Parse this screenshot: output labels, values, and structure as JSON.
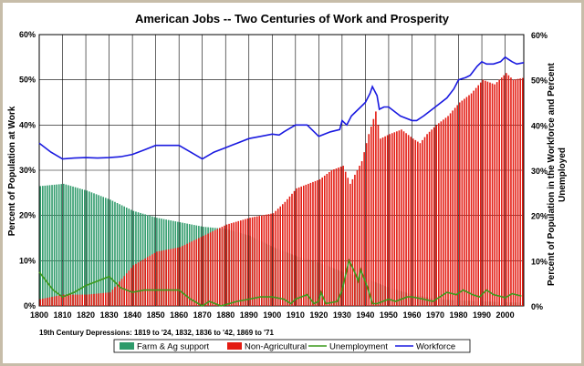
{
  "chart_data": {
    "type": "bar",
    "title": "American Jobs --  Two Centuries of  Work and Prosperity",
    "ylabel_left": "Percent of Population at Work",
    "ylabel_right": "Percent of Population in the Workforce and Percent Unemployed",
    "ylim": [
      0,
      60
    ],
    "xlim": [
      1800,
      2008
    ],
    "y_ticks": [
      "0%",
      "10%",
      "20%",
      "30%",
      "40%",
      "50%",
      "60%"
    ],
    "x_ticks": [
      "1800",
      "1810",
      "1820",
      "1830",
      "1840",
      "1850",
      "1860",
      "1870",
      "1880",
      "1890",
      "1900",
      "1910",
      "1920",
      "1930",
      "1940",
      "1950",
      "1960",
      "1970",
      "1980",
      "1990",
      "2000"
    ],
    "grid": true,
    "legend_position": "bottom",
    "note": "19th Century Depressions: 1819 to '24, 1832, 1836 to '42, 1869 to '71",
    "colors": {
      "farm": "#2e9a6a",
      "nonag": "#e31b12",
      "unemployment": "#3c9a1c",
      "workforce": "#1a1ae0",
      "frame": "#c7bda9"
    },
    "series": [
      {
        "name": "Farm & Ag support",
        "kind": "bar",
        "points": [
          [
            1800,
            26.5
          ],
          [
            1810,
            27
          ],
          [
            1820,
            25.5
          ],
          [
            1830,
            23.5
          ],
          [
            1840,
            21
          ],
          [
            1850,
            19.5
          ],
          [
            1860,
            18.5
          ],
          [
            1870,
            17.5
          ],
          [
            1880,
            17
          ],
          [
            1890,
            15.5
          ],
          [
            1900,
            13
          ],
          [
            1910,
            11
          ],
          [
            1920,
            9.5
          ],
          [
            1930,
            7.5
          ],
          [
            1940,
            6
          ],
          [
            1950,
            4
          ],
          [
            1960,
            2.5
          ],
          [
            1970,
            1.5
          ],
          [
            1980,
            1.2
          ],
          [
            1990,
            1
          ],
          [
            2000,
            0.8
          ],
          [
            2008,
            0.7
          ]
        ]
      },
      {
        "name": "Non-Agricultural",
        "kind": "bar",
        "points": [
          [
            1800,
            1.5
          ],
          [
            1810,
            2.5
          ],
          [
            1820,
            2.5
          ],
          [
            1830,
            3
          ],
          [
            1840,
            9
          ],
          [
            1850,
            12
          ],
          [
            1860,
            13
          ],
          [
            1870,
            15.5
          ],
          [
            1880,
            18
          ],
          [
            1890,
            19.5
          ],
          [
            1900,
            20.5
          ],
          [
            1905,
            23
          ],
          [
            1910,
            26
          ],
          [
            1920,
            28
          ],
          [
            1925,
            30
          ],
          [
            1930,
            31
          ],
          [
            1933,
            27
          ],
          [
            1938,
            32
          ],
          [
            1941,
            38
          ],
          [
            1944,
            43
          ],
          [
            1946,
            37
          ],
          [
            1950,
            38
          ],
          [
            1955,
            39
          ],
          [
            1960,
            37
          ],
          [
            1963,
            36
          ],
          [
            1966,
            38
          ],
          [
            1970,
            40
          ],
          [
            1975,
            42
          ],
          [
            1980,
            45
          ],
          [
            1985,
            47
          ],
          [
            1990,
            50
          ],
          [
            1995,
            49
          ],
          [
            2000,
            51.5
          ],
          [
            2003,
            50
          ],
          [
            2008,
            50.5
          ]
        ]
      },
      {
        "name": "Unemployment",
        "kind": "line",
        "points": [
          [
            1800,
            7.5
          ],
          [
            1803,
            5.5
          ],
          [
            1806,
            3.5
          ],
          [
            1810,
            2
          ],
          [
            1815,
            3
          ],
          [
            1820,
            4.5
          ],
          [
            1825,
            5.5
          ],
          [
            1830,
            6.5
          ],
          [
            1835,
            4
          ],
          [
            1840,
            3
          ],
          [
            1845,
            3.5
          ],
          [
            1850,
            3.5
          ],
          [
            1855,
            3.5
          ],
          [
            1860,
            3.5
          ],
          [
            1865,
            1.5
          ],
          [
            1870,
            0
          ],
          [
            1873,
            1
          ],
          [
            1878,
            0
          ],
          [
            1885,
            1
          ],
          [
            1890,
            1.5
          ],
          [
            1895,
            2
          ],
          [
            1900,
            2
          ],
          [
            1905,
            1.5
          ],
          [
            1908,
            0.5
          ],
          [
            1910,
            1.5
          ],
          [
            1915,
            2.5
          ],
          [
            1918,
            0.5
          ],
          [
            1920,
            1
          ],
          [
            1921,
            3
          ],
          [
            1923,
            0.5
          ],
          [
            1928,
            1
          ],
          [
            1930,
            3.5
          ],
          [
            1933,
            10
          ],
          [
            1935,
            8
          ],
          [
            1937,
            5.5
          ],
          [
            1938,
            8
          ],
          [
            1941,
            4
          ],
          [
            1943,
            0.5
          ],
          [
            1945,
            0.5
          ],
          [
            1950,
            1.5
          ],
          [
            1953,
            1
          ],
          [
            1958,
            2
          ],
          [
            1960,
            2
          ],
          [
            1965,
            1.5
          ],
          [
            1969,
            1
          ],
          [
            1975,
            3
          ],
          [
            1979,
            2.5
          ],
          [
            1982,
            3.5
          ],
          [
            1986,
            2.5
          ],
          [
            1989,
            2
          ],
          [
            1992,
            3.5
          ],
          [
            1995,
            2.5
          ],
          [
            1999,
            2
          ],
          [
            2000,
            1.8
          ],
          [
            2003,
            2.7
          ],
          [
            2007,
            2.2
          ]
        ]
      },
      {
        "name": "Workforce",
        "kind": "line",
        "points": [
          [
            1800,
            36
          ],
          [
            1805,
            34
          ],
          [
            1810,
            32.5
          ],
          [
            1815,
            32.7
          ],
          [
            1820,
            32.8
          ],
          [
            1825,
            32.7
          ],
          [
            1830,
            32.8
          ],
          [
            1835,
            33
          ],
          [
            1840,
            33.5
          ],
          [
            1845,
            34.5
          ],
          [
            1850,
            35.5
          ],
          [
            1855,
            35.5
          ],
          [
            1860,
            35.5
          ],
          [
            1865,
            34
          ],
          [
            1870,
            32.5
          ],
          [
            1875,
            34
          ],
          [
            1880,
            35
          ],
          [
            1885,
            36
          ],
          [
            1890,
            37
          ],
          [
            1895,
            37.5
          ],
          [
            1900,
            38
          ],
          [
            1903,
            37.8
          ],
          [
            1905,
            38.5
          ],
          [
            1910,
            40
          ],
          [
            1915,
            40
          ],
          [
            1917,
            39
          ],
          [
            1919,
            38
          ],
          [
            1920,
            37.5
          ],
          [
            1925,
            38.5
          ],
          [
            1929,
            39
          ],
          [
            1930,
            41
          ],
          [
            1932,
            40
          ],
          [
            1934,
            42
          ],
          [
            1938,
            44
          ],
          [
            1940,
            45
          ],
          [
            1942,
            47
          ],
          [
            1943,
            48.5
          ],
          [
            1945,
            46.5
          ],
          [
            1946,
            43.5
          ],
          [
            1948,
            44
          ],
          [
            1950,
            44
          ],
          [
            1955,
            42
          ],
          [
            1960,
            41
          ],
          [
            1962,
            41
          ],
          [
            1965,
            42
          ],
          [
            1970,
            44
          ],
          [
            1975,
            46
          ],
          [
            1978,
            48
          ],
          [
            1980,
            50
          ],
          [
            1983,
            50.5
          ],
          [
            1985,
            51
          ],
          [
            1988,
            53
          ],
          [
            1990,
            54
          ],
          [
            1992,
            53.5
          ],
          [
            1995,
            53.5
          ],
          [
            1998,
            54
          ],
          [
            2000,
            55
          ],
          [
            2003,
            54
          ],
          [
            2005,
            53.5
          ],
          [
            2008,
            53.8
          ]
        ]
      }
    ]
  }
}
